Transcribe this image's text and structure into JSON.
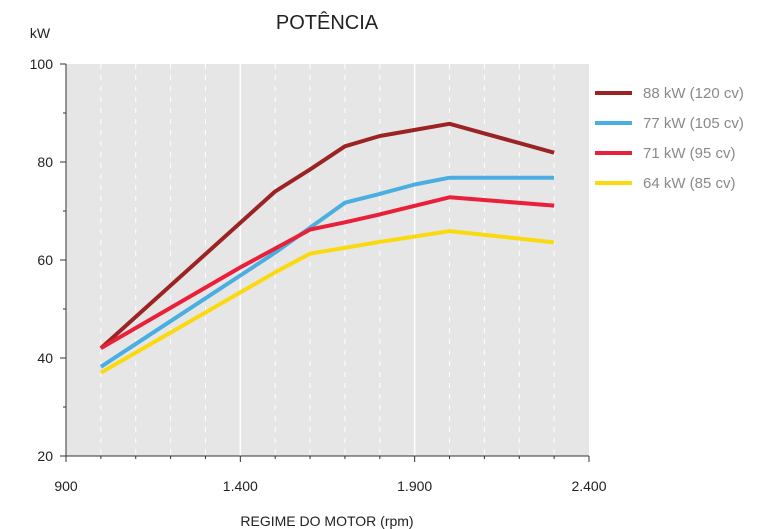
{
  "chart_data": {
    "type": "line",
    "title": "POTÊNCIA",
    "ylabel": "kW",
    "xlabel": "REGIME DO MOTOR (rpm)",
    "xlim": [
      900,
      2400
    ],
    "ylim": [
      20,
      100
    ],
    "xticks": [
      900,
      1400,
      1900,
      2400
    ],
    "xtick_labels": [
      "900",
      "1.400",
      "1.900",
      "2.400"
    ],
    "yticks": [
      20,
      40,
      60,
      80,
      100
    ],
    "ytick_labels": [
      "20",
      "40",
      "60",
      "80",
      "100"
    ],
    "minor_xticks": [
      1000,
      1100,
      1200,
      1300,
      1500,
      1600,
      1700,
      1800,
      2000,
      2100,
      2200,
      2300
    ],
    "minor_yticks": [
      30,
      50,
      70,
      90
    ],
    "grid": true,
    "background": "#e6e6e6",
    "legend_position": "right",
    "series": [
      {
        "name": "88 kW (120 cv)",
        "color": "#9b2323",
        "x": [
          1000,
          1500,
          1600,
          1700,
          1800,
          2000,
          2300
        ],
        "y": [
          42,
          74,
          78.5,
          83.2,
          85.3,
          87.8,
          81.9
        ]
      },
      {
        "name": "77 kW (105 cv)",
        "color": "#4aaee0",
        "x": [
          1000,
          1500,
          1700,
          1800,
          1900,
          2000,
          2300
        ],
        "y": [
          38.2,
          61.5,
          71.7,
          73.5,
          75.4,
          76.8,
          76.8
        ]
      },
      {
        "name": "71 kW (95 cv)",
        "color": "#e8203a",
        "x": [
          1000,
          1400,
          1600,
          1700,
          1800,
          2000,
          2300
        ],
        "y": [
          42,
          58.5,
          66.2,
          67.7,
          69.3,
          72.8,
          71.1
        ]
      },
      {
        "name": "64 kW (85 cv)",
        "color": "#fbd90f",
        "x": [
          1000,
          1500,
          1600,
          1700,
          1800,
          2000,
          2300
        ],
        "y": [
          37,
          57.5,
          61.3,
          62.5,
          63.7,
          65.9,
          63.6
        ]
      }
    ]
  }
}
